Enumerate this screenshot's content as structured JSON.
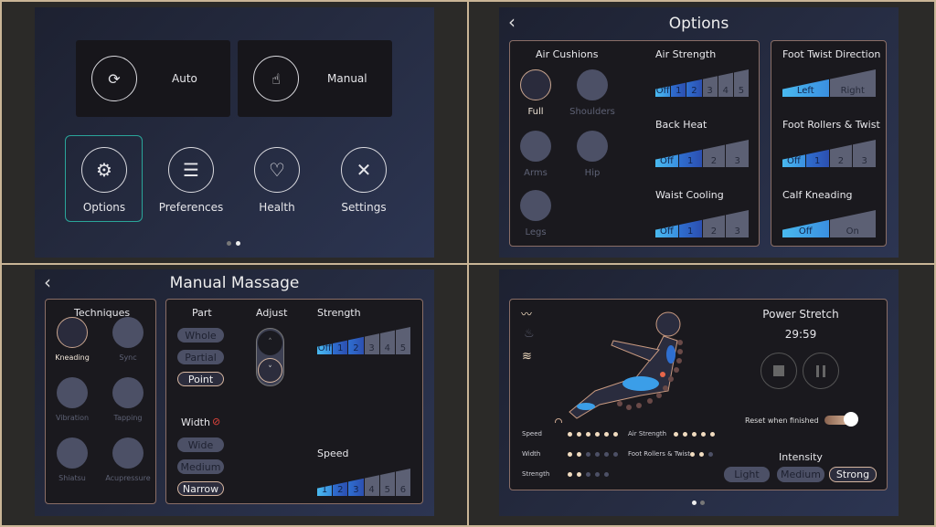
{
  "home": {
    "auto": "Auto",
    "manual": "Manual",
    "items": [
      "Options",
      "Preferences",
      "Health",
      "Settings"
    ],
    "page_dots": 2,
    "active_dot": 1
  },
  "options": {
    "back": "‹",
    "title": "Options",
    "air_cushions": {
      "title": "Air Cushions",
      "items": [
        "Full",
        "Shoulders",
        "Arms",
        "Hip",
        "Legs"
      ],
      "selected": "Full"
    },
    "controls": [
      {
        "label": "Air Strength",
        "options": [
          "Off",
          "1",
          "2",
          "3",
          "4",
          "5"
        ],
        "level": 2
      },
      {
        "label": "Back Heat",
        "options": [
          "Off",
          "1",
          "2",
          "3"
        ],
        "level": 1
      },
      {
        "label": "Waist Cooling",
        "options": [
          "Off",
          "1",
          "2",
          "3"
        ],
        "level": 1
      },
      {
        "label": "Foot Twist Direction",
        "options": [
          "Left",
          "Right"
        ],
        "level": 0
      },
      {
        "label": "Foot Rollers & Twist",
        "options": [
          "Off",
          "1",
          "2",
          "3"
        ],
        "level": 1
      },
      {
        "label": "Calf Kneading",
        "options": [
          "Off",
          "On"
        ],
        "level": 0
      }
    ]
  },
  "manual": {
    "back": "‹",
    "title": "Manual Massage",
    "techniques": {
      "title": "Techniques",
      "items": [
        "Kneading",
        "Sync",
        "Vibration",
        "Tapping",
        "Shiatsu",
        "Acupressure"
      ],
      "selected": "Kneading"
    },
    "part": {
      "title": "Part",
      "options": [
        "Whole",
        "Partial",
        "Point"
      ],
      "selected": "Point"
    },
    "adjust": {
      "title": "Adjust"
    },
    "width": {
      "title": "Width",
      "options": [
        "Wide",
        "Medium",
        "Narrow"
      ],
      "selected": "Narrow"
    },
    "strength": {
      "label": "Strength",
      "options": [
        "Off",
        "1",
        "2",
        "3",
        "4",
        "5"
      ],
      "level": 2
    },
    "speed": {
      "label": "Speed",
      "options": [
        "1",
        "2",
        "3",
        "4",
        "5",
        "6"
      ],
      "level": 2
    }
  },
  "status": {
    "program": "Power Stretch",
    "timer": "29:59",
    "reset_label": "Reset when finished",
    "reset_on": true,
    "intensity": {
      "title": "Intensity",
      "options": [
        "Light",
        "Medium",
        "Strong"
      ],
      "selected": "Strong"
    },
    "meters": [
      {
        "label": "Speed",
        "on": 6,
        "total": 6
      },
      {
        "label": "Width",
        "on": 2,
        "total": 6
      },
      {
        "label": "Strength",
        "on": 2,
        "total": 5
      },
      {
        "label": "Air Strength",
        "on": 5,
        "total": 5
      },
      {
        "label": "Foot Rollers & Twist",
        "on": 2,
        "total": 3
      }
    ],
    "page_dots": 2,
    "active_dot": 0
  }
}
